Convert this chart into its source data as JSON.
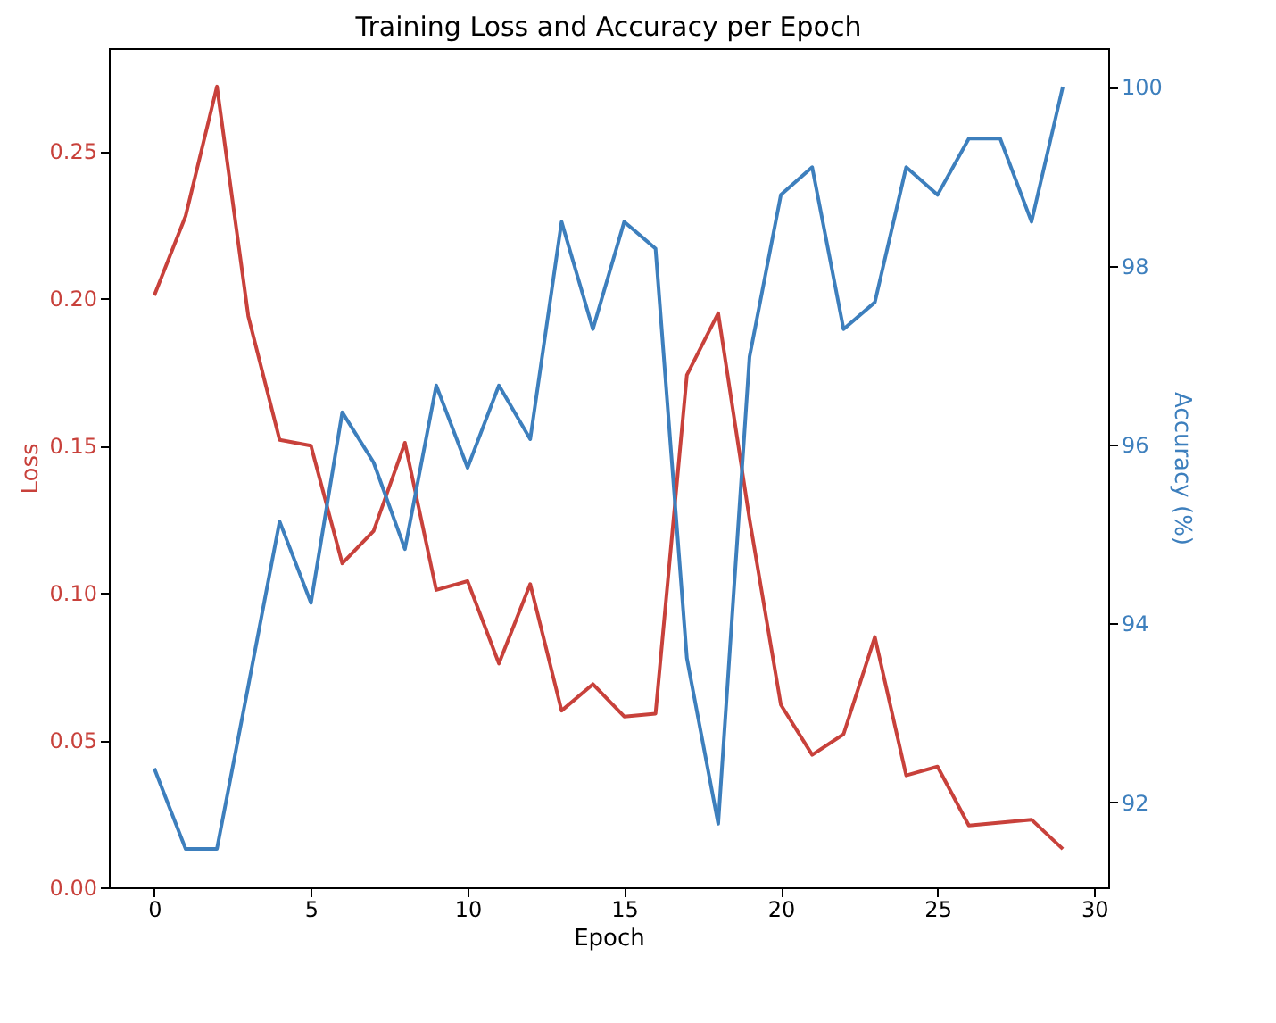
{
  "chart_data": {
    "type": "line",
    "title": "Training Loss and Accuracy per Epoch",
    "xlabel": "Epoch",
    "ylabel": "Loss",
    "y2label": "Accuracy (%)",
    "x": [
      0,
      1,
      2,
      3,
      4,
      5,
      6,
      7,
      8,
      9,
      10,
      11,
      12,
      13,
      14,
      15,
      16,
      17,
      18,
      19,
      20,
      21,
      22,
      23,
      24,
      25,
      26,
      27,
      28,
      29
    ],
    "series": [
      {
        "color": "#c8413b",
        "values": [
          0.201,
          0.228,
          0.272,
          0.194,
          0.152,
          0.15,
          0.11,
          0.121,
          0.151,
          0.101,
          0.104,
          0.076,
          0.103,
          0.06,
          0.069,
          0.058,
          0.059,
          0.174,
          0.195,
          0.125,
          0.062,
          0.045,
          0.052,
          0.085,
          0.038,
          0.041,
          0.021,
          0.022,
          0.023,
          0.013
        ]
      },
      {
        "color": "#3d7fbd",
        "axis": "y2",
        "values": [
          92.38,
          91.48,
          91.48,
          93.3,
          95.14,
          94.23,
          96.36,
          95.8,
          94.83,
          96.66,
          95.74,
          96.66,
          96.06,
          98.49,
          97.29,
          98.49,
          98.19,
          93.61,
          91.76,
          96.98,
          98.79,
          99.1,
          97.29,
          97.59,
          99.1,
          98.79,
          99.42,
          99.42,
          98.49,
          100.0
        ]
      }
    ],
    "xlim": [
      -1.45,
      30.45
    ],
    "xticks": [
      0,
      5,
      10,
      15,
      20,
      25,
      30
    ],
    "ylim": [
      0,
      0.285
    ],
    "yticks": [
      {
        "value": 0,
        "label": "0.00"
      },
      {
        "value": 0.05,
        "label": "0.05"
      },
      {
        "value": 0.1,
        "label": "0.10"
      },
      {
        "value": 0.15,
        "label": "0.15"
      },
      {
        "value": 0.2,
        "label": "0.20"
      },
      {
        "value": 0.25,
        "label": "0.25"
      }
    ],
    "y2lim": [
      91.05,
      100.43
    ],
    "y2ticks": [
      92,
      94,
      96,
      98,
      100
    ],
    "grid": false
  }
}
